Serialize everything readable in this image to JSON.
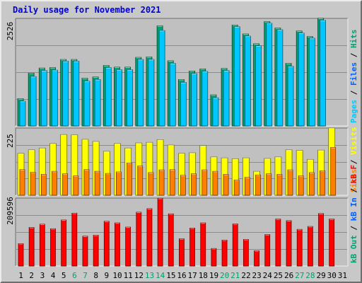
{
  "chart_data": {
    "type": "bar",
    "title": "Daily usage for November 2021",
    "categories": [
      "1",
      "2",
      "3",
      "4",
      "5",
      "6",
      "7",
      "8",
      "9",
      "10",
      "11",
      "12",
      "13",
      "14",
      "15",
      "16",
      "17",
      "18",
      "19",
      "20",
      "21",
      "22",
      "23",
      "24",
      "25",
      "26",
      "27",
      "28",
      "29",
      "30",
      "31"
    ],
    "weekend_days": [
      "6",
      "7",
      "13",
      "14",
      "20",
      "21",
      "27",
      "28"
    ],
    "panels": [
      {
        "name": "pages-files-hits",
        "max_label": "2526",
        "ylim": [
          0,
          2526
        ],
        "series": [
          {
            "name": "Hits",
            "color": "#00a070",
            "values": [
              640,
              1240,
              1360,
              1370,
              1560,
              1560,
              1120,
              1150,
              1420,
              1380,
              1380,
              1610,
              1620,
              2350,
              1530,
              1090,
              1290,
              1340,
              730,
              1350,
              2370,
              2160,
              1930,
              2450,
              2300,
              1470,
              2230,
              2100,
              2530,
              0,
              0
            ]
          },
          {
            "name": "Files",
            "color": "#0060ff",
            "values": [
              580,
              1160,
              1300,
              1310,
              1520,
              1520,
              1050,
              1090,
              1370,
              1320,
              1320,
              1560,
              1560,
              2240,
              1470,
              1020,
              1230,
              1280,
              660,
              1300,
              2330,
              2110,
              1880,
              2410,
              2260,
              1400,
              2180,
              2060,
              2480,
              0,
              0
            ]
          },
          {
            "name": "Pages",
            "color": "#00c8ff",
            "values": [
              580,
              1160,
              1300,
              1310,
              1520,
              1520,
              1050,
              1090,
              1370,
              1320,
              1320,
              1560,
              1560,
              2240,
              1470,
              1020,
              1230,
              1280,
              660,
              1300,
              2330,
              2110,
              1880,
              2410,
              2260,
              1400,
              2180,
              2060,
              2480,
              0,
              0
            ]
          }
        ],
        "axis_legend": [
          {
            "text": "Hits",
            "color": "#00a070"
          },
          {
            "text": " / ",
            "color": "#000000"
          },
          {
            "text": "Files",
            "color": "#0060ff"
          },
          {
            "text": " / ",
            "color": "#000000"
          },
          {
            "text": "Pages",
            "color": "#00c8ff"
          }
        ]
      },
      {
        "name": "visits-sites",
        "max_label": "225",
        "ylim": [
          0,
          225
        ],
        "series": [
          {
            "name": "Visits",
            "color": "#ffff00",
            "values": [
              140,
              152,
              158,
              173,
              203,
              202,
              187,
              180,
              147,
              173,
              158,
              175,
              177,
              186,
              168,
              140,
              142,
              166,
              128,
              125,
              122,
              125,
              80,
              123,
              128,
              152,
              150,
              120,
              151,
              225,
              0
            ]
          },
          {
            "name": "Sites",
            "color": "#ff8000",
            "values": [
              86,
              77,
              70,
              80,
              72,
              65,
              86,
              80,
              73,
              78,
              108,
              98,
              76,
              85,
              86,
              67,
              72,
              85,
              80,
              70,
              51,
              60,
              68,
              72,
              70,
              85,
              65,
              76,
              82,
              160,
              0
            ]
          }
        ],
        "axis_legend": [
          {
            "text": "Visits",
            "color": "#ffff00"
          },
          {
            "text": " / ",
            "color": "#000000"
          },
          {
            "text": "Sites",
            "color": "#ff8000"
          }
        ]
      },
      {
        "name": "kbytes",
        "max_label": "209596",
        "ylim": [
          0,
          209596
        ],
        "series": [
          {
            "name": "kB F",
            "color": "#ff0000",
            "values": [
              69000,
              119000,
              129000,
              115000,
              142000,
              163000,
              92000,
              95000,
              138000,
              133000,
              120000,
              166000,
              177000,
              209000,
              161000,
              84000,
              117000,
              133000,
              54000,
              80000,
              130000,
              82000,
              47000,
              97000,
              145000,
              140000,
              113000,
              122000,
              162000,
              145000,
              0
            ]
          }
        ],
        "axis_legend": [
          {
            "text": "kB F",
            "color": "#ff0000"
          },
          {
            "text": " / ",
            "color": "#000000"
          },
          {
            "text": "kB In",
            "color": "#0060ff"
          },
          {
            "text": " / ",
            "color": "#000000"
          },
          {
            "text": "kB Out",
            "color": "#00a070"
          }
        ]
      }
    ]
  }
}
